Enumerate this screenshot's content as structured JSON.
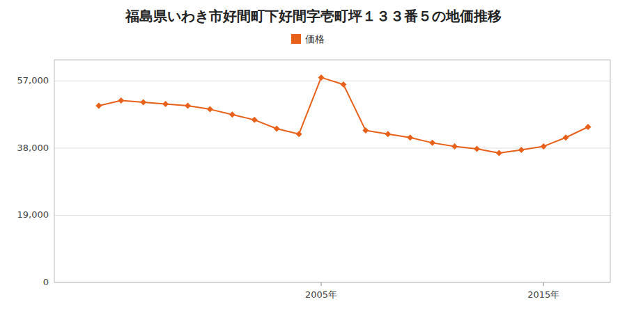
{
  "chart_data": {
    "type": "line",
    "title": "福島県いわき市好間町下好間字壱町坪１３３番５の地価推移",
    "x": [
      1995,
      1996,
      1997,
      1998,
      1999,
      2000,
      2001,
      2002,
      2003,
      2004,
      2005,
      2006,
      2007,
      2008,
      2009,
      2010,
      2011,
      2012,
      2013,
      2014,
      2015,
      2016,
      2017
    ],
    "series": [
      {
        "name": "価格",
        "color": "#e8611a",
        "marker": "diamond",
        "values": [
          50000,
          51500,
          51000,
          50500,
          50000,
          49000,
          47500,
          46000,
          43500,
          42000,
          58000,
          56000,
          43000,
          42000,
          41000,
          39500,
          38500,
          37800,
          36600,
          37500,
          38500,
          41000,
          44000
        ]
      }
    ],
    "xlim": [
      1993,
      2018
    ],
    "xticks": [
      {
        "value": 2005,
        "label": "2005年"
      },
      {
        "value": 2015,
        "label": "2015年"
      }
    ],
    "ylim": [
      0,
      63000
    ],
    "yticks": [
      0,
      {
        "value": 19000,
        "label": "19,000"
      },
      {
        "value": 38000,
        "label": "38,000"
      },
      {
        "value": 57000,
        "label": "57,000"
      }
    ],
    "grid": true,
    "legend": "top"
  }
}
